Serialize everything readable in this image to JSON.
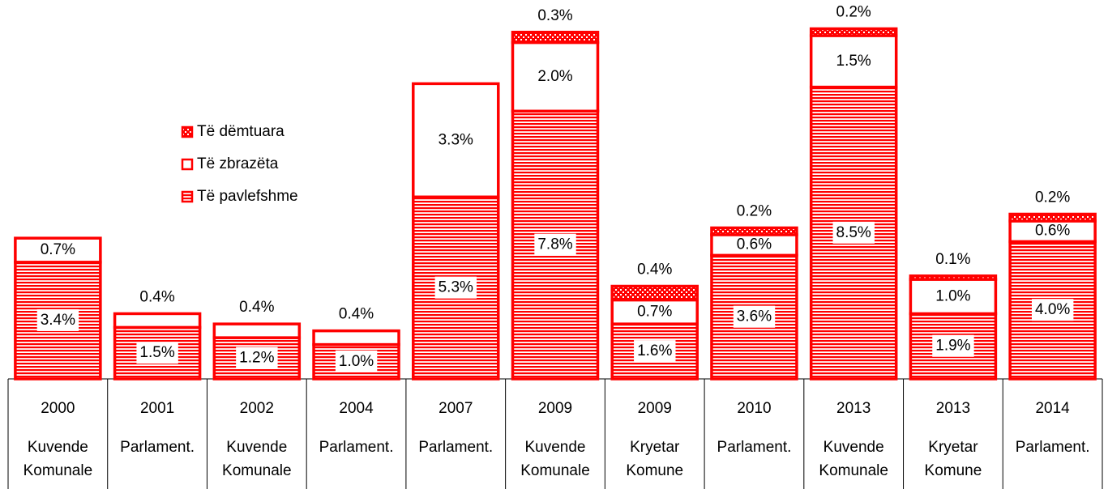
{
  "chart_data": {
    "type": "stacked_bar",
    "categories": [
      "2000",
      "2001",
      "2002",
      "2004",
      "2007",
      "2009",
      "2009",
      "2010",
      "2013",
      "2013",
      "2014"
    ],
    "category_types": [
      "Kuvende Komunale",
      "Parlament.",
      "Kuvende Komunale",
      "Parlament.",
      "Parlament.",
      "Kuvende Komunale",
      "Kryetar Komune",
      "Parlament.",
      "Kuvende Komunale",
      "Kryetar Komune",
      "Parlament."
    ],
    "ylim": [
      0,
      10.5
    ],
    "color": "#ff0000",
    "series": [
      {
        "name": "Të pavlefshme",
        "color": "#ff0000",
        "values": [
          3.4,
          1.5,
          1.2,
          1.0,
          5.3,
          7.8,
          1.6,
          3.6,
          8.5,
          1.9,
          4.0
        ],
        "value_labels": [
          "3.4%",
          "1.5%",
          "1.2%",
          "1.0%",
          "5.3%",
          "7.8%",
          "1.6%",
          "3.6%",
          "8.5%",
          "1.9%",
          "4.0%"
        ]
      },
      {
        "name": "Të zbrazëta",
        "color": "#ffffff",
        "values": [
          0.7,
          0.4,
          0.4,
          0.4,
          3.3,
          2.0,
          0.7,
          0.6,
          1.5,
          1.0,
          0.6
        ],
        "value_labels": [
          "0.7%",
          "0.4%",
          "0.4%",
          "0.4%",
          "3.3%",
          "2.0%",
          "0.7%",
          "0.6%",
          "1.5%",
          "1.0%",
          "0.6%"
        ]
      },
      {
        "name": "Të dëmtuara",
        "color": "#ff0000",
        "values": [
          null,
          null,
          null,
          null,
          null,
          0.3,
          0.4,
          0.2,
          0.2,
          0.1,
          0.2
        ],
        "value_labels": [
          null,
          null,
          null,
          null,
          null,
          "0.3%",
          "0.4%",
          "0.2%",
          "0.2%",
          "0.1%",
          "0.2%"
        ]
      }
    ],
    "legend": "upper-left"
  }
}
